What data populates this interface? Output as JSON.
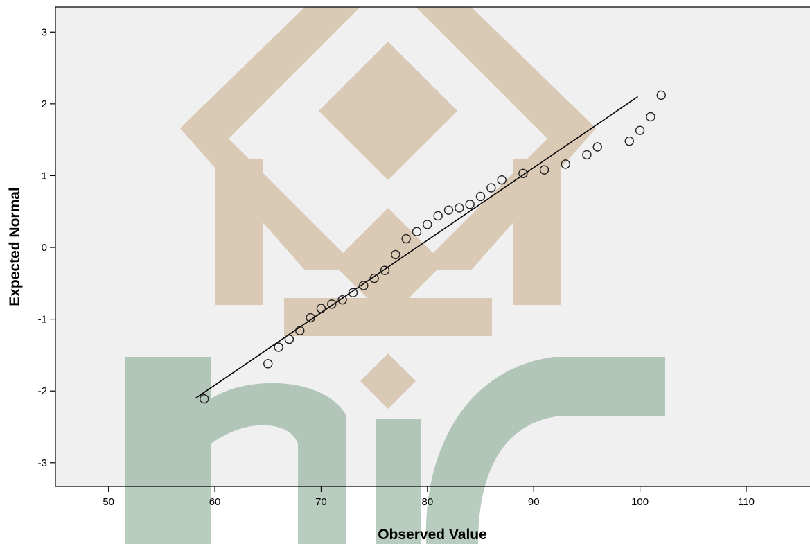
{
  "chart_data": {
    "type": "scatter",
    "title": "",
    "xlabel": "Observed Value",
    "ylabel": "Expected Normal",
    "xlim": [
      45,
      116
    ],
    "ylim": [
      -3.33,
      3.35
    ],
    "x_ticks": [
      50,
      60,
      70,
      80,
      90,
      100,
      110
    ],
    "y_ticks": [
      -3,
      -2,
      -1,
      0,
      1,
      2,
      3
    ],
    "grid": false,
    "legend": "none",
    "colors": {
      "plot_background": "#f0f0f0",
      "marker": "#222222",
      "line": "#000000",
      "watermark_tan": "#c9aa84",
      "watermark_green": "#7fa38c"
    },
    "reference_line": {
      "x": [
        58.2,
        99.8
      ],
      "y": [
        -2.1,
        2.1
      ]
    },
    "series": [
      {
        "x": [
          59,
          65,
          66,
          67,
          68,
          69,
          70,
          71,
          72,
          73,
          74,
          75,
          76,
          77,
          78,
          79,
          80,
          81,
          82,
          83,
          84,
          85,
          86,
          87,
          89,
          91,
          93,
          95,
          96,
          99,
          100,
          101,
          102
        ],
        "y": [
          -2.11,
          -1.62,
          -1.39,
          -1.28,
          -1.16,
          -0.98,
          -0.85,
          -0.79,
          -0.73,
          -0.63,
          -0.53,
          -0.43,
          -0.32,
          -0.1,
          0.12,
          0.22,
          0.32,
          0.44,
          0.52,
          0.55,
          0.6,
          0.71,
          0.83,
          0.94,
          1.03,
          1.08,
          1.16,
          1.29,
          1.4,
          1.48,
          1.63,
          1.82,
          2.12
        ]
      }
    ]
  }
}
